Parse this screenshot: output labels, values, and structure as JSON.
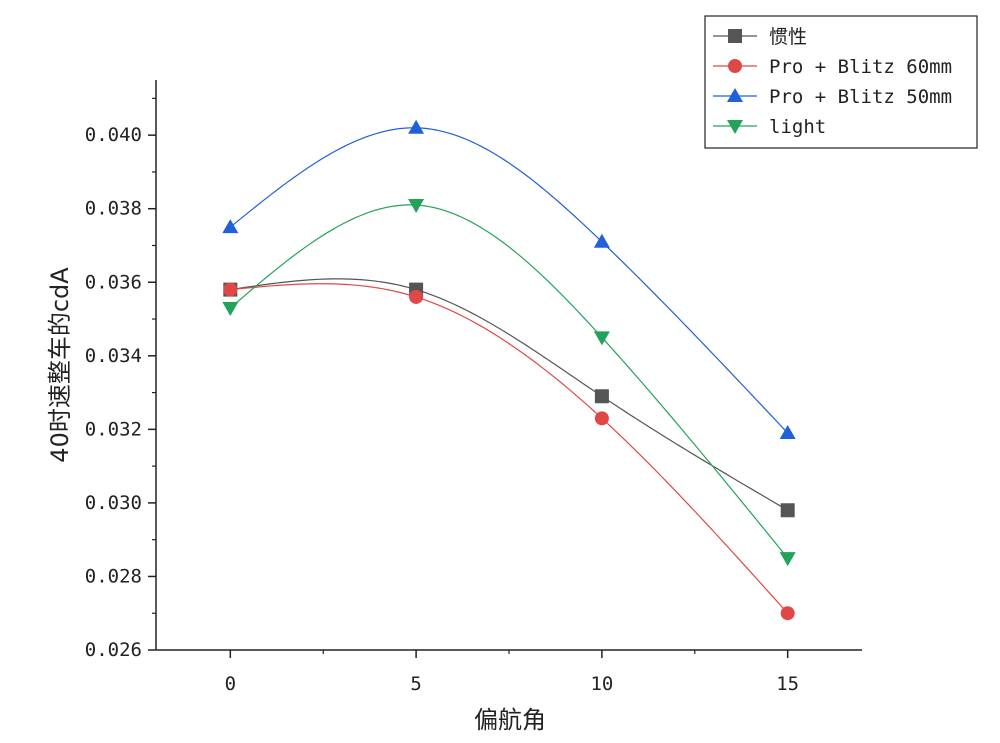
{
  "chart_data": {
    "type": "line",
    "xlabel": "偏航角",
    "ylabel": "40时速整车的cdA",
    "x": [
      0,
      5,
      10,
      15
    ],
    "xlim": [
      -2,
      17
    ],
    "ylim": [
      0.026,
      0.0415
    ],
    "x_ticks": [
      "0",
      "5",
      "10",
      "15"
    ],
    "y_ticks": [
      "0.026",
      "0.028",
      "0.030",
      "0.032",
      "0.034",
      "0.036",
      "0.038",
      "0.040"
    ],
    "grid": false,
    "legend_position": "top-right",
    "series": [
      {
        "name": "惯性",
        "values": [
          0.0358,
          0.0358,
          0.0329,
          0.0298
        ],
        "color": "#555555",
        "marker": "square"
      },
      {
        "name": "Pro + Blitz 60mm",
        "values": [
          0.0358,
          0.0356,
          0.0323,
          0.027
        ],
        "color": "#e04848",
        "marker": "circle"
      },
      {
        "name": "Pro + Blitz 50mm",
        "values": [
          0.0375,
          0.0402,
          0.0371,
          0.0319
        ],
        "color": "#2060d8",
        "marker": "triangle-up"
      },
      {
        "name": "light",
        "values": [
          0.0353,
          0.0381,
          0.0345,
          0.0285
        ],
        "color": "#23a35a",
        "marker": "triangle-down"
      }
    ]
  }
}
